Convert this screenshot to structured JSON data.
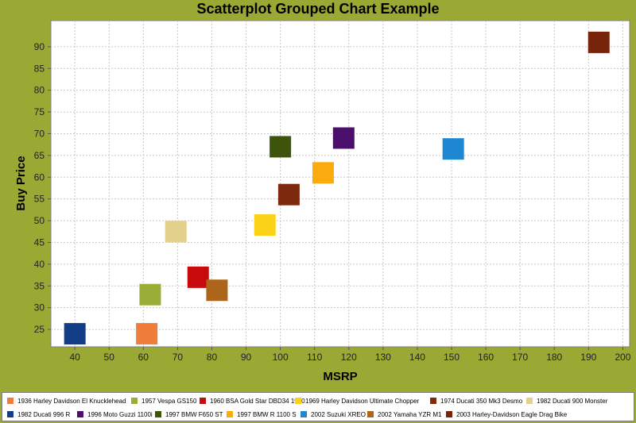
{
  "chart_data": {
    "type": "scatter",
    "title": "Scatterplot Grouped Chart Example",
    "xlabel": "MSRP",
    "ylabel": "Buy Price",
    "xlim": [
      33,
      202
    ],
    "ylim": [
      21,
      96
    ],
    "x_ticks": [
      40,
      50,
      60,
      70,
      80,
      90,
      100,
      110,
      120,
      130,
      140,
      150,
      160,
      170,
      180,
      190,
      200
    ],
    "y_ticks": [
      25,
      30,
      35,
      40,
      45,
      50,
      55,
      60,
      65,
      70,
      75,
      80,
      85,
      90
    ],
    "grid": true,
    "legend_position": "bottom",
    "series": [
      {
        "name": "1936 Harley Davidson El Knucklehead",
        "color": "#f07d3a",
        "x": [
          61
        ],
        "y": [
          24
        ]
      },
      {
        "name": "1957 Vespa GS150",
        "color": "#9aad37",
        "x": [
          62
        ],
        "y": [
          33
        ]
      },
      {
        "name": "1960 BSA Gold Star DBD34 1960",
        "color": "#c70a0a",
        "x": [
          76
        ],
        "y": [
          37
        ]
      },
      {
        "name": "1969 Harley Davidson Ultimate Chopper",
        "color": "#fcd219",
        "x": [
          95.5
        ],
        "y": [
          49
        ]
      },
      {
        "name": "1974 Ducati 350 Mk3 Desmo",
        "color": "#7d2a0e",
        "x": [
          102.5
        ],
        "y": [
          56
        ]
      },
      {
        "name": "1982 Ducati 900 Monster",
        "color": "#e2d08c",
        "x": [
          69.5
        ],
        "y": [
          47.5
        ]
      },
      {
        "name": "1982 Ducati 996 R",
        "color": "#143d87",
        "x": [
          40
        ],
        "y": [
          24
        ]
      },
      {
        "name": "1996 Moto Guzzi 1100i",
        "color": "#4b0f6e",
        "x": [
          118.5
        ],
        "y": [
          69
        ]
      },
      {
        "name": "1997 BMW F650 ST",
        "color": "#3e540a",
        "x": [
          100
        ],
        "y": [
          67
        ]
      },
      {
        "name": "1997 BMW R 1100 S",
        "color": "#fcab0e",
        "x": [
          112.5
        ],
        "y": [
          61
        ]
      },
      {
        "name": "2002 Suzuki XREO",
        "color": "#1e87d2",
        "x": [
          150.5
        ],
        "y": [
          66.5
        ]
      },
      {
        "name": "2002 Yamaha YZR M1",
        "color": "#ad6619",
        "x": [
          81.5
        ],
        "y": [
          34
        ]
      },
      {
        "name": "2003 Harley-Davidson Eagle Drag Bike",
        "color": "#78240a",
        "x": [
          193
        ],
        "y": [
          91
        ]
      }
    ]
  }
}
